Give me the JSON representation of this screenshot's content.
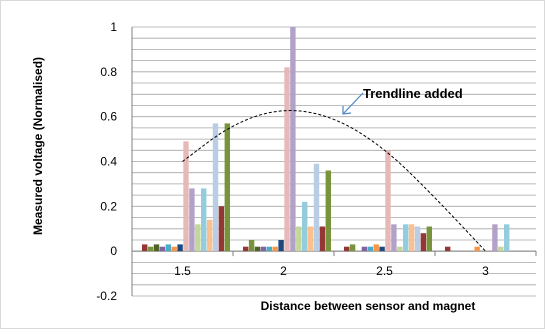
{
  "chart_data": {
    "type": "bar",
    "title": "",
    "xlabel": "Distance between sensor and magnet",
    "ylabel": "Measured voltage (Normalised)",
    "categories": [
      "1.5",
      "2",
      "2.5",
      "3"
    ],
    "ylim": [
      -0.2,
      1
    ],
    "yticks": [
      "-0.2",
      "0",
      "0.2",
      "0.4",
      "0.6",
      "0.8",
      "1"
    ],
    "grid": true,
    "legend": "none",
    "annotation": "Trendline added",
    "series_colors": [
      "#943634",
      "#77933C",
      "#4F6228",
      "#8064A2",
      "#4BACC6",
      "#F79646",
      "#1F497D",
      "#E6B9B8",
      "#B3A2C7",
      "#C3D69B",
      "#93CDDD",
      "#FAC090",
      "#B9CDE5"
    ],
    "series": [
      {
        "values": [
          0.03,
          0.02,
          0.02,
          0.02
        ]
      },
      {
        "values": [
          0.02,
          0.05,
          0.03,
          null
        ]
      },
      {
        "values": [
          0.03,
          0.02,
          null,
          null
        ]
      },
      {
        "values": [
          0.02,
          0.02,
          0.02,
          null
        ]
      },
      {
        "values": [
          0.03,
          0.02,
          0.02,
          null
        ]
      },
      {
        "values": [
          0.02,
          0.02,
          0.03,
          0.02
        ]
      },
      {
        "values": [
          0.03,
          0.05,
          0.02,
          null
        ]
      },
      {
        "values": [
          0.49,
          0.82,
          0.45,
          null
        ]
      },
      {
        "values": [
          0.28,
          1.0,
          0.12,
          0.12
        ]
      },
      {
        "values": [
          0.12,
          0.11,
          0.02,
          0.02
        ]
      },
      {
        "values": [
          0.28,
          0.22,
          0.12,
          0.12
        ]
      },
      {
        "values": [
          0.14,
          0.11,
          0.12,
          null
        ]
      },
      {
        "values": [
          0.57,
          0.39,
          0.11,
          null
        ]
      },
      {
        "values": [
          0.2,
          0.11,
          0.08,
          null
        ]
      },
      {
        "values": [
          0.57,
          0.36,
          0.11,
          null
        ]
      }
    ],
    "trendline": {
      "style": "dashed",
      "x": [
        1.5,
        1.75,
        2.0,
        2.25,
        2.5,
        2.75,
        3.0
      ],
      "y": [
        0.4,
        0.57,
        0.64,
        0.6,
        0.46,
        0.24,
        0.0
      ]
    }
  }
}
